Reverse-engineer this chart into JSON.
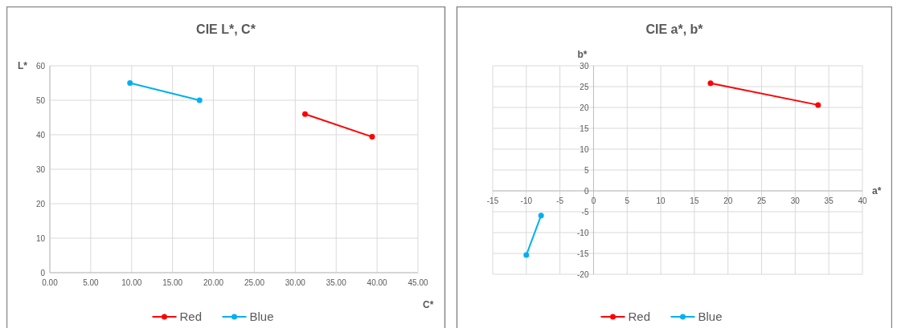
{
  "chart_data": [
    {
      "type": "line",
      "title": "CIE L*, C*",
      "xlabel": "C*",
      "ylabel": "L*",
      "xlim": [
        0,
        45
      ],
      "xticks": [
        {
          "value": 0,
          "label": "0.00"
        },
        {
          "value": 5,
          "label": "5.00"
        },
        {
          "value": 10,
          "label": "10.00"
        },
        {
          "value": 15,
          "label": "15.00"
        },
        {
          "value": 20,
          "label": "20.00"
        },
        {
          "value": 25,
          "label": "25.00"
        },
        {
          "value": 30,
          "label": "30.00"
        },
        {
          "value": 35,
          "label": "35.00"
        },
        {
          "value": 40,
          "label": "40.00"
        },
        {
          "value": 45,
          "label": "45.00"
        }
      ],
      "ylim": [
        0,
        60
      ],
      "yticks": [
        0,
        10,
        20,
        30,
        40,
        50,
        60
      ],
      "grid": true,
      "legend": "bottom",
      "marker": "circle",
      "line_style": "solid",
      "series": [
        {
          "name": "Red",
          "color": "#ff0000",
          "x": [
            31.2,
            39.4
          ],
          "values": [
            46,
            39.4
          ]
        },
        {
          "name": "Blue",
          "color": "#00b0f0",
          "x": [
            9.8,
            18.3
          ],
          "values": [
            55,
            50
          ]
        }
      ]
    },
    {
      "type": "line",
      "title": "CIE a*, b*",
      "xlabel": "a*",
      "ylabel": "b*",
      "xlim": [
        -15,
        40
      ],
      "xticks": [
        -15,
        -10,
        -5,
        0,
        5,
        10,
        15,
        20,
        25,
        30,
        35,
        40
      ],
      "ylim": [
        -20,
        30
      ],
      "yticks": [
        -20,
        -15,
        -10,
        -5,
        0,
        5,
        10,
        15,
        20,
        25,
        30
      ],
      "grid": true,
      "legend": "bottom",
      "marker": "circle",
      "line_style": "solid",
      "series": [
        {
          "name": "Red",
          "color": "#ff0000",
          "x": [
            17.4,
            33.4
          ],
          "values": [
            25.8,
            20.6
          ]
        },
        {
          "name": "Blue",
          "color": "#00b0f0",
          "x": [
            -10,
            -7.8
          ],
          "values": [
            -15.4,
            -5.9
          ]
        }
      ]
    }
  ]
}
